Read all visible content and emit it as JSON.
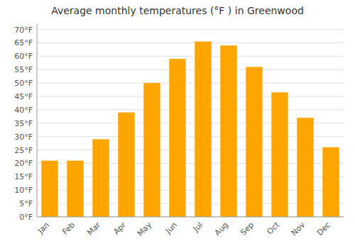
{
  "chart_data": {
    "type": "bar",
    "title": "Average monthly temperatures (°F ) in Greenwood",
    "categories": [
      "Jan",
      "Feb",
      "Mar",
      "Apr",
      "May",
      "Jun",
      "Jul",
      "Aug",
      "Sep",
      "Oct",
      "Nov",
      "Dec"
    ],
    "values": [
      21,
      21,
      29,
      39,
      50,
      59,
      65.5,
      64,
      56,
      46.5,
      37,
      26
    ],
    "color": "#FFA500",
    "ylim": [
      0,
      72
    ],
    "yticks": [
      {
        "value": 0,
        "label": "0°F"
      },
      {
        "value": 5,
        "label": "5°F"
      },
      {
        "value": 10,
        "label": "10°F"
      },
      {
        "value": 15,
        "label": "15°F"
      },
      {
        "value": 20,
        "label": "20°F"
      },
      {
        "value": 25,
        "label": "25°F"
      },
      {
        "value": 30,
        "label": "30°F"
      },
      {
        "value": 35,
        "label": "35°F"
      },
      {
        "value": 40,
        "label": "40°F"
      },
      {
        "value": 45,
        "label": "45°F"
      },
      {
        "value": 50,
        "label": "50°F"
      },
      {
        "value": 55,
        "label": "55°F"
      },
      {
        "value": 60,
        "label": "60°F"
      },
      {
        "value": 65,
        "label": "65°F"
      },
      {
        "value": 70,
        "label": "70°F"
      }
    ],
    "grid": true
  }
}
